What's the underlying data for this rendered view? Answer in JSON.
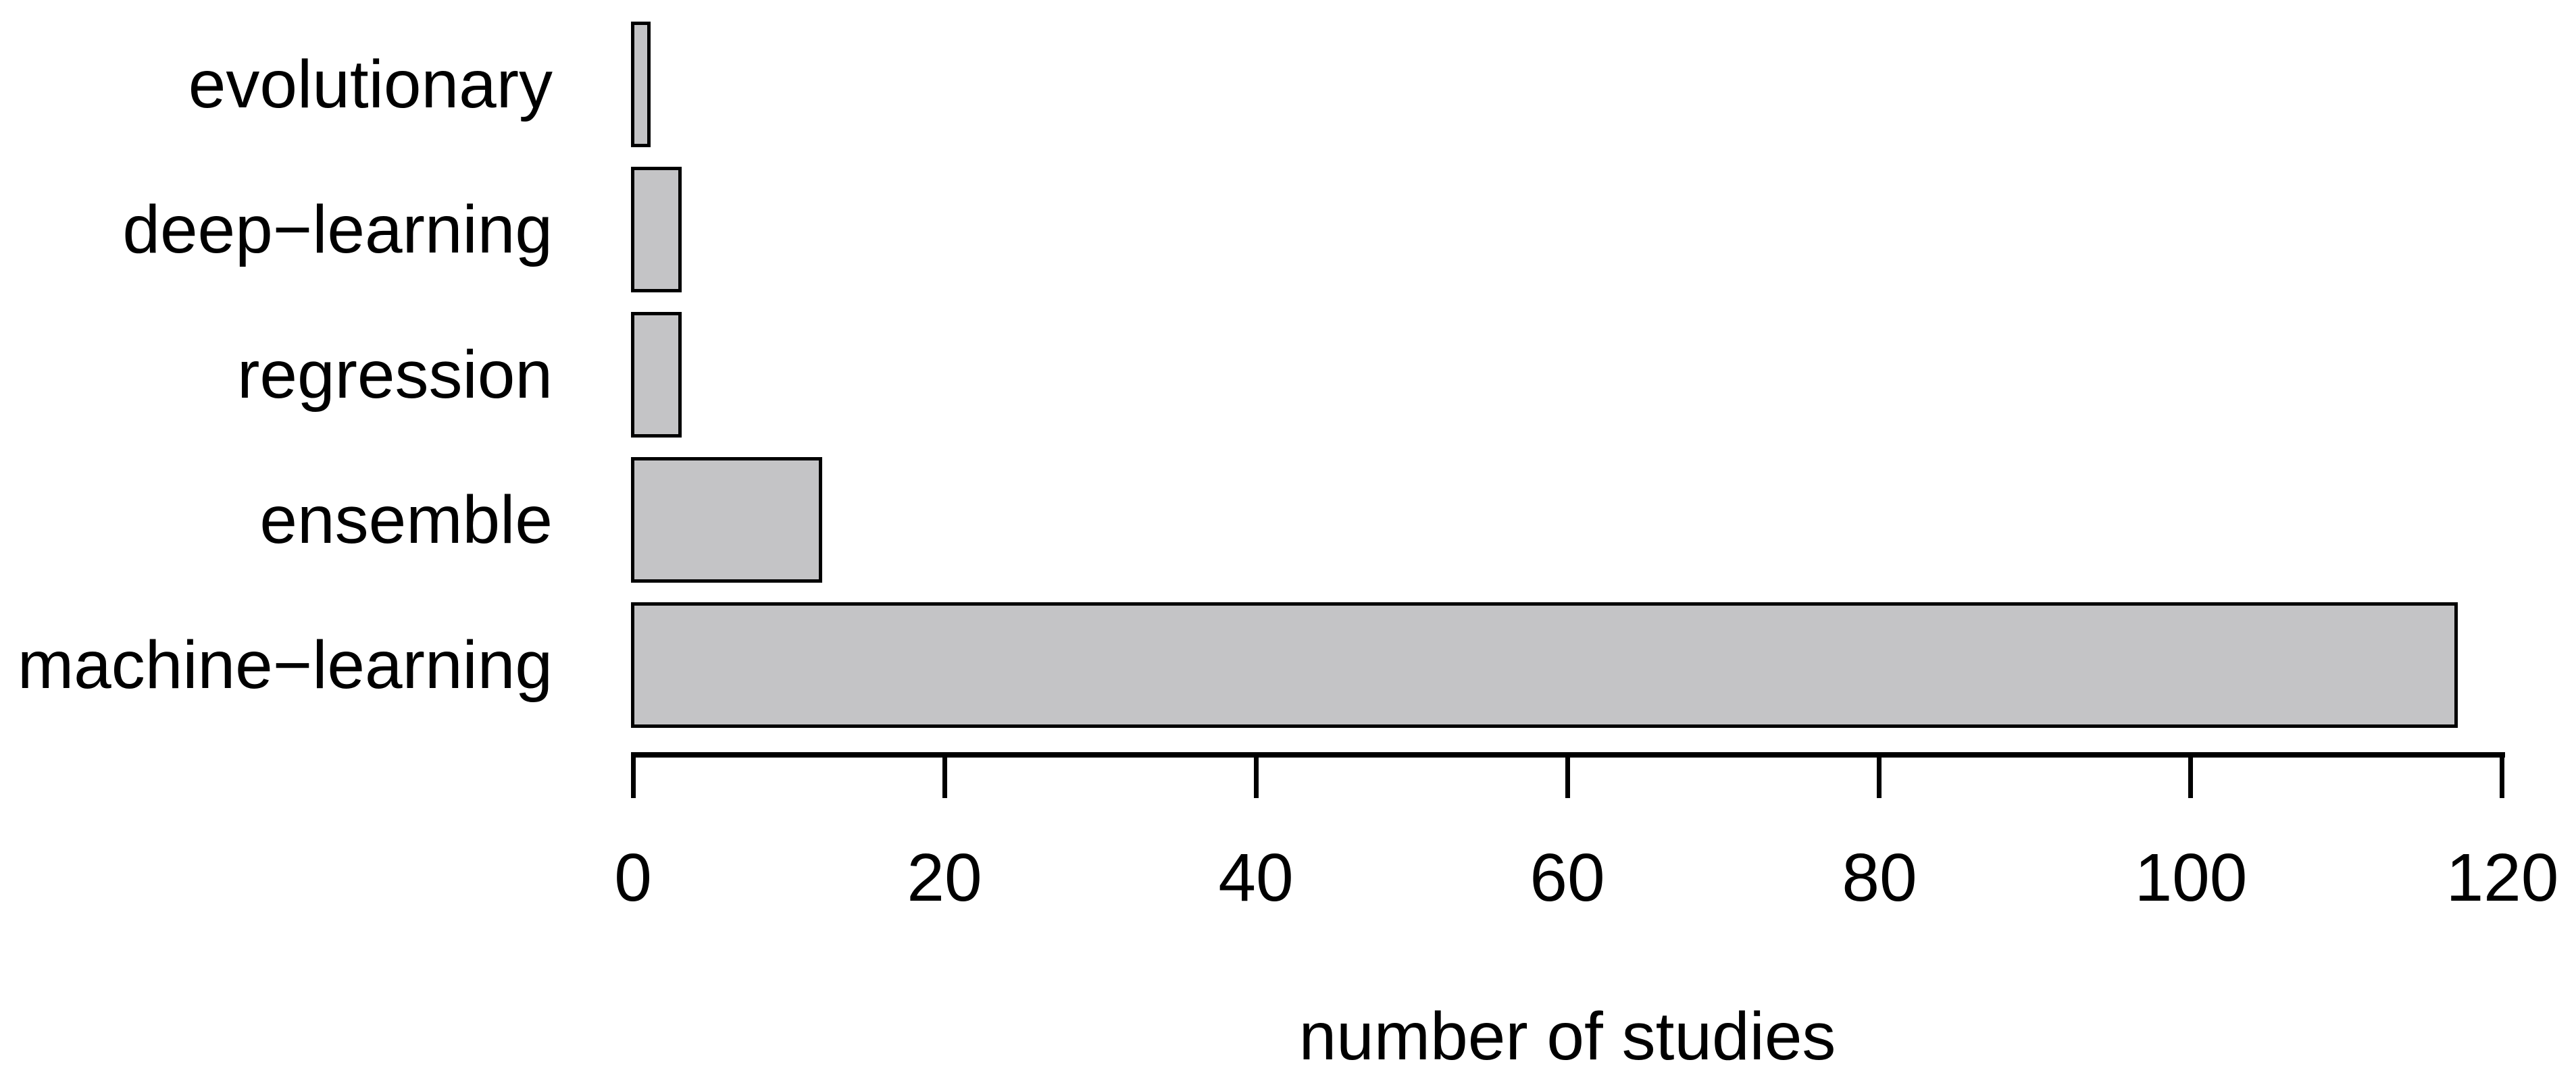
{
  "chart_data": {
    "type": "bar",
    "orientation": "horizontal",
    "title": "",
    "xlabel": "number of studies",
    "ylabel": "",
    "categories": [
      "evolutionary",
      "deep−learning",
      "regression",
      "ensemble",
      "machine−learning"
    ],
    "values": [
      1,
      3,
      3,
      12,
      117
    ],
    "xticks": [
      0,
      20,
      40,
      60,
      80,
      100,
      120
    ],
    "xlim": [
      0,
      120
    ],
    "grid": "off",
    "legend": "none",
    "bar_fill_color": "#c4c4c6",
    "bar_border_color": "#000000",
    "text_color": "#000000",
    "background_color": "#ffffff"
  }
}
